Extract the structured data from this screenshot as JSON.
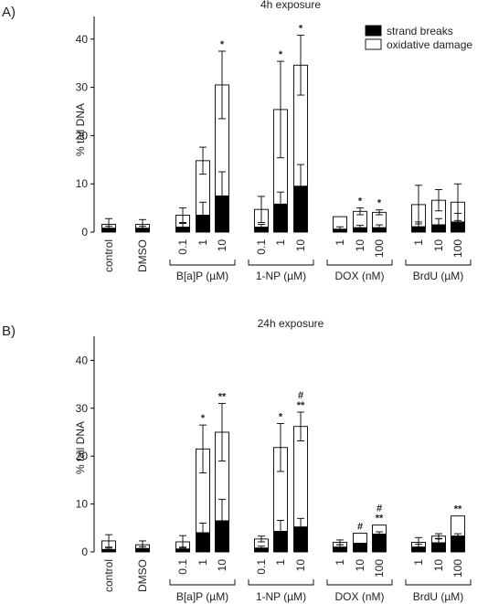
{
  "chart_data": [
    {
      "type": "bar",
      "stacked": true,
      "panel_label": "A)",
      "title": "4h exposure",
      "ylabel": "% tail DNA",
      "ylim": [
        0,
        45
      ],
      "yticks": [
        0,
        10,
        20,
        30,
        40
      ],
      "grid": false,
      "legend_position": "top-right",
      "categories": [
        "control",
        "DMSO",
        "0.1",
        "1",
        "10",
        "0.1",
        "1",
        "10",
        "1",
        "10",
        "100",
        "1",
        "10",
        "100"
      ],
      "groups": [
        {
          "label": "B[a]P (µM)",
          "from": 2,
          "to": 4
        },
        {
          "label": "1-NP (µM)",
          "from": 5,
          "to": 7
        },
        {
          "label": "DOX (nM)",
          "from": 8,
          "to": 10
        },
        {
          "label": "BrdU (µM)",
          "from": 11,
          "to": 13
        }
      ],
      "series": [
        {
          "name": "strand breaks",
          "color": "#000000",
          "values": [
            0.8,
            0.8,
            1.0,
            3.5,
            7.5,
            1.0,
            5.8,
            9.5,
            0.6,
            0.9,
            0.9,
            1.1,
            1.5,
            2.1
          ],
          "error": [
            0.4,
            0.4,
            0.8,
            2.7,
            5.0,
            0.6,
            2.5,
            4.5,
            0.5,
            0.5,
            0.6,
            1.0,
            1.3,
            1.8
          ]
        },
        {
          "name": "oxidative damage",
          "color": "#ffffff",
          "values": [
            0.8,
            0.8,
            2.5,
            11.3,
            23.0,
            3.7,
            19.6,
            25.1,
            2.6,
            3.4,
            3.2,
            4.6,
            5.1,
            4.1
          ],
          "error": [
            1.2,
            1.0,
            1.5,
            2.8,
            7.0,
            2.7,
            10.0,
            6.2,
            0.0,
            0.7,
            0.5,
            4.0,
            2.2,
            3.8
          ]
        }
      ],
      "annotations": [
        "",
        "",
        "",
        "",
        "*",
        "",
        "*",
        "*",
        "",
        "*",
        "*",
        "",
        "",
        ""
      ]
    },
    {
      "type": "bar",
      "stacked": true,
      "panel_label": "B)",
      "title": "24h exposure",
      "ylabel": "% tail DNA",
      "ylim": [
        0,
        45
      ],
      "yticks": [
        0,
        10,
        20,
        30,
        40
      ],
      "grid": false,
      "categories": [
        "control",
        "DMSO",
        "0.1",
        "1",
        "10",
        "0.1",
        "1",
        "10",
        "1",
        "10",
        "100",
        "1",
        "10",
        "100"
      ],
      "groups": [
        {
          "label": "B[a]P (µM)",
          "from": 2,
          "to": 4
        },
        {
          "label": "1-NP (µM)",
          "from": 5,
          "to": 7
        },
        {
          "label": "DOX (nM)",
          "from": 8,
          "to": 10
        },
        {
          "label": "BrdU (µM)",
          "from": 11,
          "to": 13
        }
      ],
      "series": [
        {
          "name": "strand breaks",
          "color": "#000000",
          "values": [
            0.5,
            0.7,
            0.6,
            4.0,
            6.5,
            0.8,
            4.3,
            5.2,
            1.0,
            1.8,
            3.7,
            1.0,
            1.9,
            3.3
          ],
          "error": [
            0.3,
            0.4,
            0.4,
            2.0,
            4.5,
            0.4,
            2.3,
            1.8,
            0.5,
            0.0,
            0.5,
            0.6,
            0.8,
            0.5
          ]
        },
        {
          "name": "oxidative damage",
          "color": "#ffffff",
          "values": [
            1.8,
            0.8,
            1.5,
            17.5,
            18.5,
            1.9,
            17.5,
            21.0,
            1.0,
            2.1,
            1.9,
            1.0,
            1.4,
            4.2
          ],
          "error": [
            1.3,
            0.8,
            1.3,
            5.0,
            6.0,
            0.6,
            5.0,
            3.0,
            0.5,
            0.0,
            0.0,
            1.0,
            0.5,
            0.0
          ]
        }
      ],
      "annotations": [
        "",
        "",
        "",
        "*",
        "**",
        "",
        "*",
        "#\n**",
        "",
        "#",
        "#\n**",
        "",
        "",
        "**"
      ]
    }
  ]
}
